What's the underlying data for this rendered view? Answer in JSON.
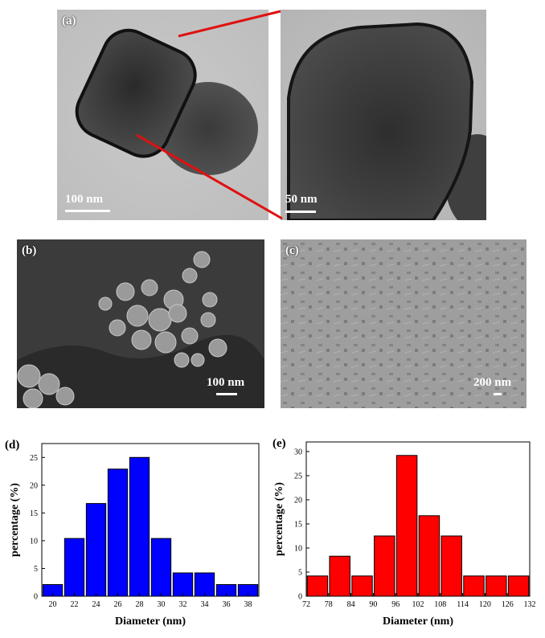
{
  "panels": {
    "a": {
      "label": "(a)",
      "scale_left": "100 nm",
      "scale_right": "50 nm"
    },
    "b": {
      "label": "(b)",
      "scale": "100 nm"
    },
    "c": {
      "label": "(c)",
      "scale": "200 nm"
    }
  },
  "chart_data": [
    {
      "type": "bar",
      "panel_label": "(d)",
      "color": "#0000ff",
      "xlabel": "Diameter (nm)",
      "ylabel": "percentage (%)",
      "x": [
        20,
        22,
        24,
        26,
        28,
        30,
        32,
        34,
        36,
        38
      ],
      "values": [
        2.1,
        10.4,
        16.7,
        22.9,
        25.0,
        10.4,
        4.2,
        4.2,
        2.1,
        2.1
      ],
      "xticks": [
        20,
        22,
        24,
        26,
        28,
        30,
        32,
        34,
        36,
        38
      ],
      "yticks": [
        0,
        5,
        10,
        15,
        20,
        25
      ],
      "xlim": [
        19,
        39
      ],
      "ylim": [
        0,
        27.5
      ]
    },
    {
      "type": "bar",
      "panel_label": "(e)",
      "color": "#ff0000",
      "xlabel": "Diameter (nm)",
      "ylabel": "percentage (%)",
      "x": [
        75,
        81,
        87,
        93,
        99,
        105,
        111,
        117,
        123,
        129
      ],
      "values": [
        4.2,
        8.3,
        4.2,
        12.5,
        29.2,
        16.7,
        12.5,
        4.2,
        4.2,
        4.2
      ],
      "xticks": [
        72,
        78,
        84,
        90,
        96,
        102,
        108,
        114,
        120,
        126,
        132
      ],
      "yticks": [
        0,
        5,
        10,
        15,
        20,
        25,
        30
      ],
      "xlim": [
        72,
        132
      ],
      "ylim": [
        0,
        32
      ]
    }
  ]
}
